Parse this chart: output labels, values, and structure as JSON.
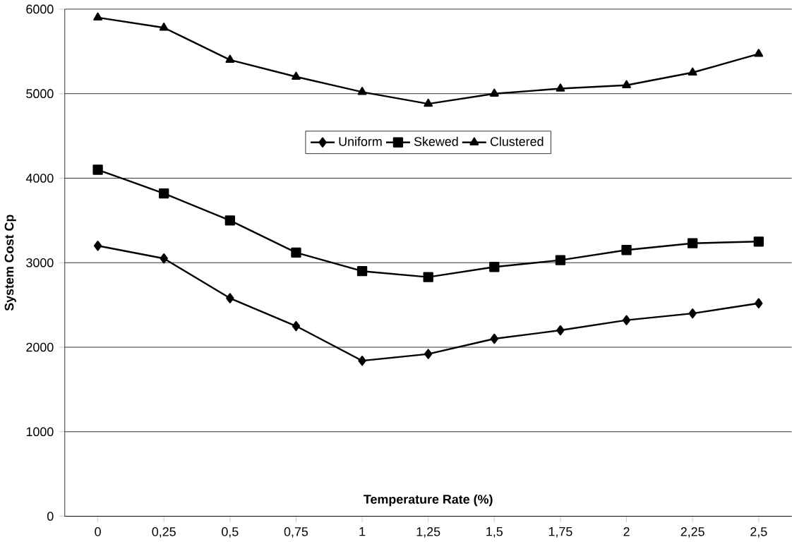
{
  "chart_data": {
    "type": "line",
    "xlabel": "Temperature Rate (%)",
    "ylabel": "System Cost Cp",
    "categories": [
      "0",
      "0,25",
      "0,5",
      "0,75",
      "1",
      "1,25",
      "1,5",
      "1,75",
      "2",
      "2,25",
      "2,5"
    ],
    "series": [
      {
        "name": "Uniform",
        "color": "#000000",
        "marker": "diamond",
        "values": [
          3200,
          3050,
          2580,
          2250,
          1840,
          1920,
          2100,
          2200,
          2320,
          2400,
          2520
        ]
      },
      {
        "name": "Skewed",
        "color": "#000000",
        "marker": "square",
        "values": [
          4100,
          3820,
          3500,
          3120,
          2900,
          2830,
          2950,
          3030,
          3150,
          3230,
          3250
        ]
      },
      {
        "name": "Clustered",
        "color": "#000000",
        "marker": "triangle",
        "values": [
          5900,
          5780,
          5400,
          5200,
          5020,
          4880,
          5000,
          5060,
          5100,
          5250,
          5470
        ]
      }
    ],
    "ylim": [
      0,
      6000
    ],
    "yticks": [
      0,
      1000,
      2000,
      3000,
      4000,
      5000,
      6000
    ],
    "grid": "y",
    "legend": "top",
    "line_style": "solid"
  }
}
